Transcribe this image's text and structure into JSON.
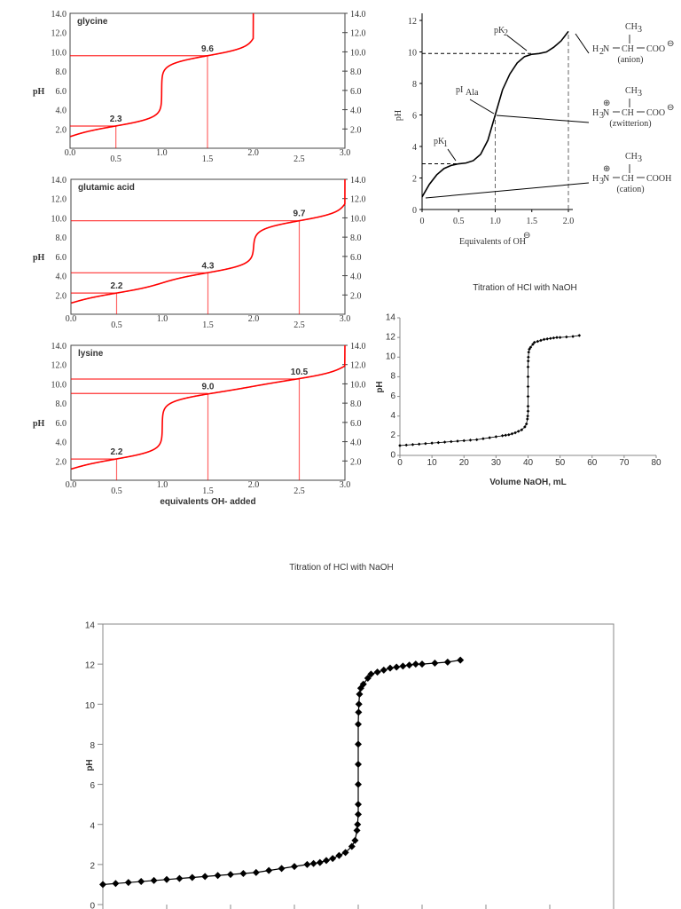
{
  "amino_charts": [
    {
      "type": "line",
      "name": "glycine",
      "ylabel": "pH",
      "ylim": [
        0,
        14
      ],
      "xlim": [
        0,
        3
      ],
      "yticks": [
        "2.0",
        "4.0",
        "6.0",
        "8.0",
        "10.0",
        "12.0",
        "14.0"
      ],
      "xticks": [
        "0.0",
        "0.5",
        "1.0",
        "1.5",
        "2.0",
        "2.5",
        "3.0"
      ],
      "pKa": [
        2.3,
        9.6
      ],
      "equivalents": 2,
      "marks": [
        {
          "x": 0.5,
          "y": 2.3,
          "label": "2.3"
        },
        {
          "x": 1.5,
          "y": 9.6,
          "label": "9.6"
        }
      ],
      "xlabel": "",
      "color": "#ff0000"
    },
    {
      "type": "line",
      "name": "glutamic acid",
      "ylabel": "pH",
      "ylim": [
        0,
        14
      ],
      "xlim": [
        0,
        3
      ],
      "yticks": [
        "2.0",
        "4.0",
        "6.0",
        "8.0",
        "10.0",
        "12.0",
        "14.0"
      ],
      "xticks": [
        "0.0",
        "0.5",
        "1.0",
        "1.5",
        "2.0",
        "2.5",
        "3.0"
      ],
      "pKa": [
        2.2,
        4.3,
        9.7
      ],
      "equivalents": 3,
      "marks": [
        {
          "x": 0.5,
          "y": 2.2,
          "label": "2.2"
        },
        {
          "x": 1.5,
          "y": 4.3,
          "label": "4.3"
        },
        {
          "x": 2.5,
          "y": 9.7,
          "label": "9.7"
        }
      ],
      "xlabel": "",
      "color": "#ff0000"
    },
    {
      "type": "line",
      "name": "lysine",
      "ylabel": "pH",
      "ylim": [
        0,
        14
      ],
      "xlim": [
        0,
        3
      ],
      "yticks": [
        "2.0",
        "4.0",
        "6.0",
        "8.0",
        "10.0",
        "12.0",
        "14.0"
      ],
      "xticks": [
        "0.0",
        "0.5",
        "1.0",
        "1.5",
        "2.0",
        "2.5",
        "3.0"
      ],
      "pKa": [
        2.2,
        9.0,
        10.5
      ],
      "equivalents": 3,
      "marks": [
        {
          "x": 0.5,
          "y": 2.2,
          "label": "2.2"
        },
        {
          "x": 1.5,
          "y": 9.0,
          "label": "9.0"
        },
        {
          "x": 2.5,
          "y": 10.5,
          "label": "10.5"
        }
      ],
      "xlabel": "equivalents OH- added",
      "color": "#ff0000"
    }
  ],
  "alanine_chart": {
    "type": "line",
    "ylabel": "pH",
    "xlabel": "Equivalents of OH",
    "xlabel_sup": "⊖",
    "xlim": [
      0,
      2
    ],
    "ylim": [
      0,
      12
    ],
    "xticks": [
      "0",
      "0.5",
      "1.0",
      "1.5",
      "2.0"
    ],
    "yticks": [
      "0",
      "2",
      "4",
      "6",
      "8",
      "10",
      "12"
    ],
    "points": [
      [
        0,
        0.8
      ],
      [
        0.1,
        1.6
      ],
      [
        0.2,
        2.2
      ],
      [
        0.3,
        2.6
      ],
      [
        0.4,
        2.8
      ],
      [
        0.5,
        2.9
      ],
      [
        0.6,
        2.95
      ],
      [
        0.7,
        3.1
      ],
      [
        0.8,
        3.5
      ],
      [
        0.9,
        4.4
      ],
      [
        1.0,
        6.0
      ],
      [
        1.1,
        7.6
      ],
      [
        1.2,
        8.6
      ],
      [
        1.3,
        9.3
      ],
      [
        1.4,
        9.7
      ],
      [
        1.5,
        9.85
      ],
      [
        1.6,
        9.9
      ],
      [
        1.7,
        10.0
      ],
      [
        1.8,
        10.3
      ],
      [
        1.9,
        10.7
      ],
      [
        2.0,
        11.3
      ]
    ],
    "dashed_levels": [
      2.9,
      9.9
    ],
    "dashed_x": [
      1.0,
      2.0
    ],
    "annotations": {
      "pk1": "pK",
      "pk1_sub": "1",
      "pk2": "pK",
      "pk2_sub": "2",
      "pi": "pI",
      "pi_sub": "Ala"
    },
    "structures": [
      {
        "top": "CH",
        "top_sub": "3",
        "left": "H",
        "left_sub": "2",
        "left_rest": "N",
        "mid": "CH",
        "right": "COO",
        "charge_right": "⊖",
        "charge_left": "",
        "caption": "(anion)"
      },
      {
        "top": "CH",
        "top_sub": "3",
        "left": "H",
        "left_sub": "3",
        "left_rest": "N",
        "mid": "CH",
        "right": "COO",
        "charge_right": "⊖",
        "charge_left": "⊕",
        "caption": "(zwitterion)"
      },
      {
        "top": "CH",
        "top_sub": "3",
        "left": "H",
        "left_sub": "3",
        "left_rest": "N",
        "mid": "CH",
        "right": "COOH",
        "charge_right": "",
        "charge_left": "⊕",
        "caption": "(cation)"
      }
    ]
  },
  "hcl_small": {
    "type": "line",
    "title": "Titration of HCl with NaOH",
    "xlabel": "Volume NaOH, mL",
    "ylabel": "pH",
    "xlim": [
      0,
      80
    ],
    "ylim": [
      0,
      14
    ],
    "xticks": [
      "0",
      "10",
      "20",
      "30",
      "40",
      "50",
      "60",
      "70",
      "80"
    ],
    "yticks": [
      "0",
      "2",
      "4",
      "6",
      "8",
      "10",
      "12",
      "14"
    ]
  },
  "hcl_large": {
    "type": "line",
    "title": "Titration of HCl with NaOH",
    "ylabel": "pH",
    "xlim": [
      0,
      80
    ],
    "ylim": [
      0,
      14
    ],
    "yticks": [
      "0",
      "2",
      "4",
      "6",
      "8",
      "10",
      "12",
      "14"
    ]
  },
  "chart_data": {
    "type": "line",
    "title": "Titration of HCl with NaOH",
    "xlabel": "Volume NaOH, mL",
    "ylabel": "pH",
    "xlim": [
      0,
      80
    ],
    "ylim": [
      0,
      14
    ],
    "x": [
      0,
      2,
      4,
      6,
      8,
      10,
      12,
      14,
      16,
      18,
      20,
      22,
      24,
      26,
      28,
      30,
      32,
      33,
      34,
      35,
      36,
      37,
      38,
      39,
      39.5,
      39.8,
      39.9,
      40,
      40,
      40,
      40,
      40,
      40,
      40.05,
      40.1,
      40.2,
      40.4,
      40.8,
      41.5,
      42,
      43,
      44,
      45,
      46,
      47,
      48,
      49,
      50,
      52,
      54,
      56
    ],
    "y": [
      1.0,
      1.05,
      1.1,
      1.15,
      1.2,
      1.25,
      1.3,
      1.35,
      1.4,
      1.45,
      1.5,
      1.55,
      1.6,
      1.7,
      1.8,
      1.9,
      2.0,
      2.05,
      2.1,
      2.2,
      2.3,
      2.45,
      2.6,
      2.9,
      3.2,
      3.7,
      4.0,
      4.5,
      5.0,
      6.0,
      7.0,
      8.0,
      9.0,
      9.6,
      10.0,
      10.5,
      10.8,
      11.0,
      11.3,
      11.5,
      11.6,
      11.7,
      11.8,
      11.85,
      11.9,
      11.95,
      12.0,
      12.0,
      12.05,
      12.1,
      12.2
    ]
  }
}
